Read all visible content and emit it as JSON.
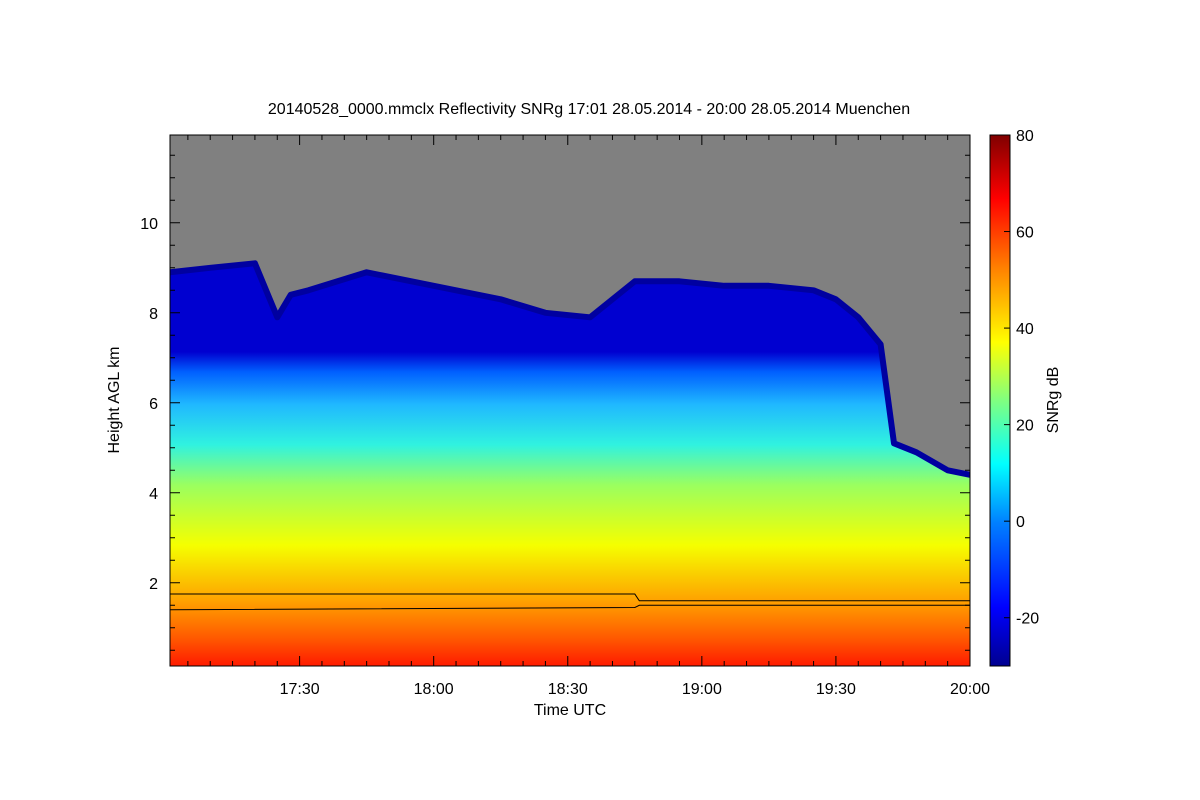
{
  "chart_data": {
    "type": "heatmap",
    "title": "20140528_0000.mmclx Reflectivity SNRg   17:01 28.05.2014 - 20:00 28.05.2014 Muenchen",
    "xlabel": "Time UTC",
    "ylabel": "Height AGL km",
    "colorbar_label": "SNRg dB",
    "x_ticks": [
      "17:30",
      "18:00",
      "18:30",
      "19:00",
      "19:30",
      "20:00"
    ],
    "x_tick_minutes": [
      30,
      60,
      90,
      120,
      150,
      180
    ],
    "x_range_minutes": [
      1,
      180
    ],
    "x_range_labels": [
      "17:01",
      "20:00"
    ],
    "y_ticks": [
      2,
      4,
      6,
      8,
      10
    ],
    "y_range_km": [
      0.15,
      11.95
    ],
    "colorbar_ticks": [
      -20,
      0,
      20,
      40,
      60,
      80
    ],
    "colorbar_range_db": [
      -30,
      80
    ],
    "colormap": [
      "#00008f",
      "#0000ff",
      "#0080ff",
      "#00ffff",
      "#80ff80",
      "#ffff00",
      "#ff8000",
      "#ff0000",
      "#800000"
    ],
    "no_signal_color": "#808080",
    "cloud_top_km": {
      "x_minutes": [
        1,
        10,
        20,
        25,
        28,
        32,
        45,
        60,
        75,
        85,
        95,
        105,
        115,
        125,
        135,
        145,
        150,
        155,
        160,
        163,
        168,
        175,
        180
      ],
      "y_km": [
        8.9,
        9.0,
        9.1,
        7.9,
        8.4,
        8.5,
        8.9,
        8.6,
        8.3,
        8.0,
        7.9,
        8.7,
        8.7,
        8.6,
        8.6,
        8.5,
        8.3,
        7.9,
        7.3,
        5.1,
        4.9,
        4.5,
        4.4
      ]
    },
    "overlay_lines_km": {
      "x_minutes": [
        1,
        105,
        106,
        180
      ],
      "upper_y": [
        1.75,
        1.75,
        1.6,
        1.6
      ],
      "lower_y": [
        1.4,
        1.45,
        1.5,
        1.5
      ]
    }
  }
}
